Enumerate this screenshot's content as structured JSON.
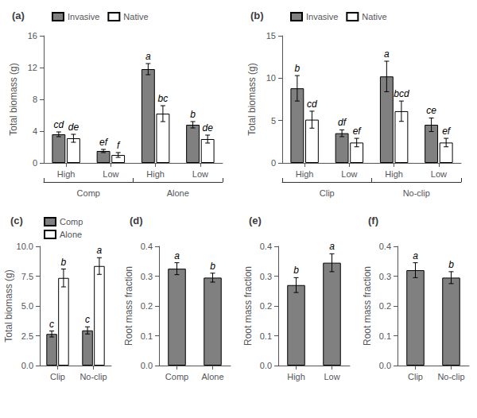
{
  "chart_data": [
    {
      "type": "bar",
      "title": "(a)",
      "ylabel": "Total biomass (g)",
      "categories": [
        "High",
        "Low",
        "High",
        "Low"
      ],
      "groups": [
        "Comp",
        "Alone"
      ],
      "series": [
        {
          "name": "Invasive",
          "color": "#808080",
          "values": [
            3.6,
            1.5,
            11.8,
            4.8
          ],
          "errors": [
            0.3,
            0.2,
            0.7,
            0.4
          ],
          "letters": [
            "cd",
            "ef",
            "a",
            "b"
          ]
        },
        {
          "name": "Native",
          "color": "#ffffff",
          "values": [
            3.1,
            1.0,
            6.2,
            3.0
          ],
          "errors": [
            0.5,
            0.3,
            1.0,
            0.5
          ],
          "letters": [
            "de",
            "f",
            "bc",
            "de"
          ]
        }
      ],
      "edge_color": "#000000",
      "ylim": [
        0,
        16
      ],
      "yticks": [
        0,
        4,
        8,
        12,
        16
      ],
      "legend": "upper left",
      "grid": false
    },
    {
      "type": "bar",
      "title": "(b)",
      "ylabel": "Total biomass (g)",
      "categories": [
        "High",
        "Low",
        "High",
        "Low"
      ],
      "groups": [
        "Clip",
        "No-clip"
      ],
      "series": [
        {
          "name": "Invasive",
          "color": "#808080",
          "values": [
            8.8,
            3.5,
            10.2,
            4.5
          ],
          "errors": [
            1.5,
            0.4,
            1.8,
            0.8
          ],
          "letters": [
            "b",
            "df",
            "a",
            "ce"
          ]
        },
        {
          "name": "Native",
          "color": "#ffffff",
          "values": [
            5.1,
            2.4,
            6.1,
            2.4
          ],
          "errors": [
            1.0,
            0.5,
            1.2,
            0.5
          ],
          "letters": [
            "cd",
            "ef",
            "bcd",
            "ef"
          ]
        }
      ],
      "edge_color": "#000000",
      "ylim": [
        0,
        15
      ],
      "yticks": [
        0,
        5,
        10,
        15
      ],
      "legend": "upper left",
      "grid": false
    },
    {
      "type": "bar",
      "title": "(c)",
      "ylabel": "Total biomass (g)",
      "categories": [
        "Clip",
        "No-clip"
      ],
      "series": [
        {
          "name": "Comp",
          "color": "#808080",
          "values": [
            2.65,
            2.95
          ],
          "errors": [
            0.25,
            0.3
          ],
          "letters": [
            "c",
            "c"
          ]
        },
        {
          "name": "Alone",
          "color": "#ffffff",
          "values": [
            7.35,
            8.35
          ],
          "errors": [
            0.75,
            0.7
          ],
          "letters": [
            "b",
            "a"
          ]
        }
      ],
      "edge_color": "#000000",
      "ylim": [
        0,
        10.0
      ],
      "yticks": [
        {
          "value": 0,
          "label": "0.0"
        },
        2.5,
        {
          "value": 5,
          "label": "5.0"
        },
        7.5,
        {
          "value": 10,
          "label": "10.0"
        }
      ],
      "legend": "upper left",
      "grid": false
    },
    {
      "type": "bar",
      "title": "(d)",
      "ylabel": "Root mass fraction",
      "categories": [
        "Comp",
        "Alone"
      ],
      "series": [
        {
          "color": "#808080",
          "values": [
            0.325,
            0.295
          ],
          "errors": [
            0.02,
            0.015
          ],
          "letters": [
            "a",
            "b"
          ]
        }
      ],
      "edge_color": "#000000",
      "ylim": [
        0.0,
        0.4
      ],
      "yticks": [
        {
          "value": 0,
          "label": "0.0"
        },
        0.1,
        0.2,
        0.3,
        0.4
      ],
      "grid": false
    },
    {
      "type": "bar",
      "title": "(e)",
      "ylabel": "Root mass fraction",
      "categories": [
        "High",
        "Low"
      ],
      "series": [
        {
          "color": "#808080",
          "values": [
            0.27,
            0.345
          ],
          "errors": [
            0.025,
            0.03
          ],
          "letters": [
            "b",
            "a"
          ]
        }
      ],
      "edge_color": "#000000",
      "ylim": [
        0.0,
        0.4
      ],
      "yticks": [
        {
          "value": 0,
          "label": "0.0"
        },
        0.1,
        0.2,
        0.3,
        0.4
      ],
      "grid": false
    },
    {
      "type": "bar",
      "title": "(f)",
      "ylabel": "Root mass fraction",
      "categories": [
        "Clip",
        "No-clip"
      ],
      "series": [
        {
          "color": "#808080",
          "values": [
            0.32,
            0.295
          ],
          "errors": [
            0.025,
            0.02
          ],
          "letters": [
            "a",
            "b"
          ]
        }
      ],
      "edge_color": "#000000",
      "ylim": [
        0.0,
        0.4
      ],
      "yticks": [
        {
          "value": 0,
          "label": "0.0"
        },
        0.1,
        0.2,
        0.3,
        0.4
      ],
      "grid": false
    }
  ]
}
